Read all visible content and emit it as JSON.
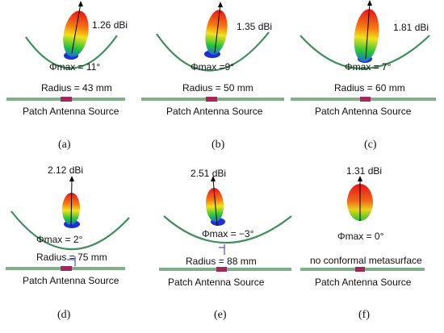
{
  "panels": [
    {
      "label": "(a)",
      "gain": "1.26 dBi",
      "phi": "Φmax = 11°",
      "radius": "Radius = 43 mm",
      "source": "Patch Antenna Source"
    },
    {
      "label": "(b)",
      "gain": "1.35 dBi",
      "phi": "Φmax =9°",
      "radius": "Radius = 50 mm",
      "source": "Patch Antenna Source"
    },
    {
      "label": "(c)",
      "gain": "1.81 dBi",
      "phi": "Φmax = 7°",
      "radius": "Radius = 60 mm",
      "source": "Patch Antenna Source"
    },
    {
      "label": "(d)",
      "gain": "2.12 dBi",
      "phi": "Φmax = 2°",
      "radius": "Radius = 75 mm",
      "source": "Patch Antenna Source"
    },
    {
      "label": "(e)",
      "gain": "2.51 dBi",
      "phi": "Φmax = −3°",
      "radius": "Radius = 88 mm",
      "source": "Patch Antenna Source"
    },
    {
      "label": "(f)",
      "gain": "1.31 dBi",
      "phi": "Φmax = 0°",
      "note": "no conformal metasurface",
      "source": "Patch Antenna Source"
    }
  ],
  "colors": {
    "arc": "#3f8f5a",
    "ground": "#7fb08a",
    "patch": "#a0285a",
    "lobe_top": "#e8131a",
    "lobe_mid": "#f2e21a",
    "lobe_low": "#27c43a",
    "lobe_base": "#1e2fd6",
    "arrow": "#000000"
  }
}
